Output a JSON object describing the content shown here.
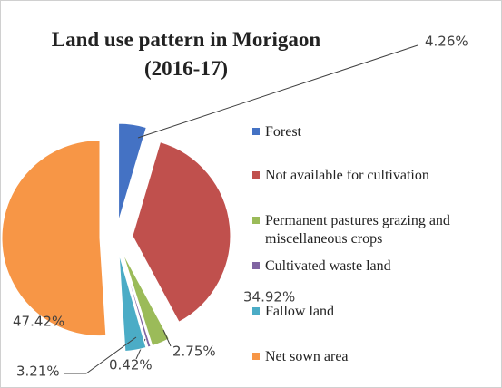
{
  "chart_data": {
    "type": "pie",
    "title": "Land use pattern in Morigaon (2016-17)",
    "categories": [
      "Forest",
      "Not available for cultivation",
      "Permanent pastures grazing and miscellaneous crops",
      "Cultivated waste land",
      "Fallow land",
      "Net sown area"
    ],
    "values": [
      4.26,
      34.92,
      2.75,
      0.42,
      3.21,
      47.42
    ],
    "value_labels": [
      "4.26%",
      "34.92%",
      "2.75%",
      "0.42%",
      "3.21%",
      "47.42%"
    ],
    "colors": [
      "#4472c4",
      "#c0504d",
      "#9bbb59",
      "#8064a2",
      "#4bacc6",
      "#f79646"
    ],
    "legend": "right"
  }
}
